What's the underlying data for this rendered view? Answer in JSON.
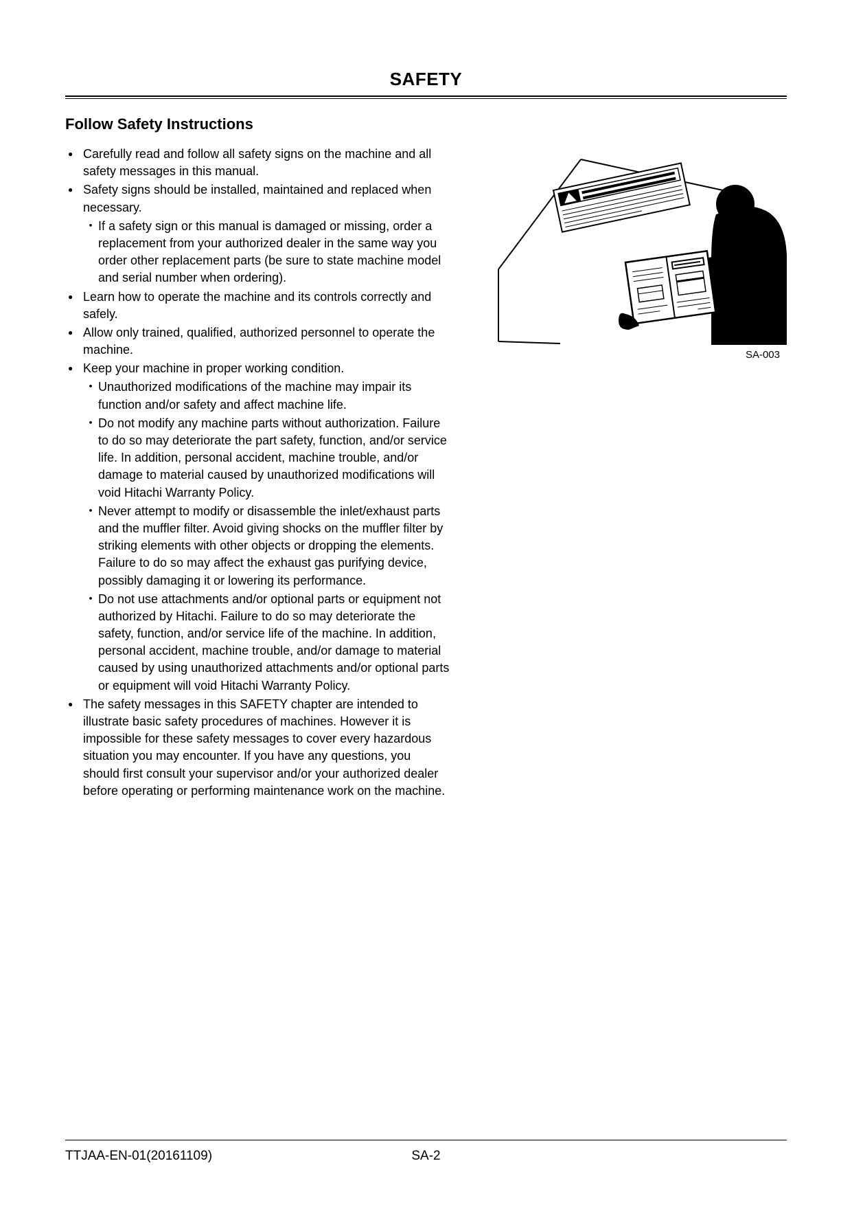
{
  "header": {
    "title": "SAFETY"
  },
  "section": {
    "title": "Follow Safety Instructions"
  },
  "image": {
    "caption": "SA-003"
  },
  "bullets": [
    {
      "text": "Carefully read and follow all safety signs on the machine and all safety messages in this manual."
    },
    {
      "text": "Safety signs should be installed, maintained and replaced when necessary.",
      "sub": [
        "If a safety sign or this manual is damaged or missing, order a replacement from your authorized dealer in the same way you order other replacement parts (be sure to state machine model and serial number when ordering)."
      ]
    },
    {
      "text": "Learn how to operate the machine and its controls correctly and safely."
    },
    {
      "text": "Allow only trained, qualified, authorized personnel to operate the machine."
    },
    {
      "text": "Keep your machine in proper working condition.",
      "sub": [
        "Unauthorized modifications of the machine may impair its function and/or safety and affect machine life.",
        "Do not modify any machine parts without authorization. Failure to do so may deteriorate the part safety, function, and/or service life. In addition, personal accident, machine trouble, and/or damage to material caused by unauthorized modifications will void Hitachi Warranty Policy.",
        "Never attempt to modify or disassemble the inlet/exhaust parts and the muffler filter. Avoid giving shocks on the muffler filter by striking elements with other objects or dropping the elements. Failure to do so may affect the exhaust gas purifying device, possibly damaging it or lowering its performance.",
        "Do not use attachments and/or optional parts or equipment not authorized by Hitachi. Failure to do so may deteriorate the safety, function, and/or service life of the machine. In addition, personal accident, machine trouble, and/or damage to material caused by using unauthorized attachments and/or optional parts or equipment will void Hitachi Warranty Policy."
      ]
    },
    {
      "text": "The safety messages in this SAFETY chapter are intended to illustrate basic safety procedures of machines. However it is impossible for these safety messages to cover every hazardous situation you may encounter. If you have any questions, you should first consult your supervisor and/or your authorized dealer before operating or performing maintenance work on the machine."
    }
  ],
  "footer": {
    "left": "TTJAA-EN-01(20161109)",
    "center": "SA-2"
  },
  "colors": {
    "text": "#000000",
    "background": "#ffffff",
    "rule": "#000000"
  }
}
